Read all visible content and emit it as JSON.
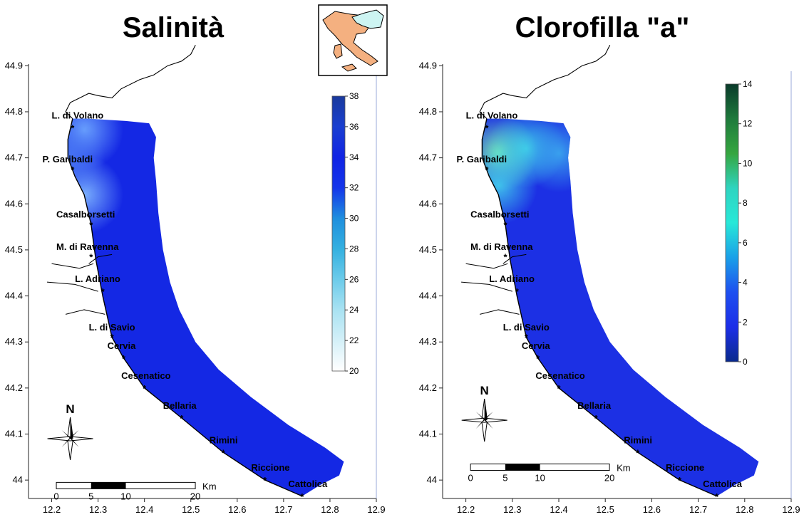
{
  "panels": [
    {
      "id": "salinity",
      "title": "Salinità",
      "colorbar": {
        "min": 20,
        "max": 38,
        "ticks": [
          20,
          22,
          24,
          26,
          28,
          30,
          32,
          34,
          36,
          38
        ],
        "colors": [
          "#ffffff",
          "#d4f0f8",
          "#a9e2f2",
          "#6ccbea",
          "#34b0e0",
          "#1f8fde",
          "#1435ea",
          "#1023e4",
          "#1a3fd0",
          "#1a3a9c"
        ]
      },
      "field": {
        "base_color": "#1428e4",
        "patches": [
          {
            "lon": 12.27,
            "lat": 44.76,
            "color": "#6fa8ff"
          },
          {
            "lon": 12.27,
            "lat": 44.62,
            "color": "#7fb6ff"
          },
          {
            "lon": 12.23,
            "lat": 44.7,
            "color": "#4a7af5"
          }
        ]
      },
      "has_inset": true,
      "north_arrow": {
        "lon": 12.24,
        "lat": 44.09,
        "label": "N"
      },
      "scalebar": {
        "label": "Km",
        "ticks": [
          "0",
          "5",
          "10",
          "20"
        ],
        "lon": 12.21,
        "lat": 43.995
      }
    },
    {
      "id": "chlorophyll",
      "title": "Clorofilla \"a\"",
      "colorbar": {
        "min": 0,
        "max": 14,
        "ticks": [
          0,
          2,
          4,
          6,
          8,
          10,
          12,
          14
        ],
        "colors": [
          "#0a2a8c",
          "#1c2ee8",
          "#1e4ff0",
          "#1aa0e8",
          "#28e8d8",
          "#2fd4c0",
          "#36a640",
          "#1e7a3c",
          "#0a3a2a"
        ]
      },
      "field": {
        "base_color": "#1c30e4",
        "patches": [
          {
            "lon": 12.27,
            "lat": 44.71,
            "color": "#7ef0b0"
          },
          {
            "lon": 12.33,
            "lat": 44.72,
            "color": "#40d8e8"
          },
          {
            "lon": 12.4,
            "lat": 44.71,
            "color": "#3aa4ee"
          },
          {
            "lon": 12.27,
            "lat": 44.64,
            "color": "#40c8ec"
          }
        ]
      },
      "has_inset": false,
      "north_arrow": {
        "lon": 12.24,
        "lat": 44.13,
        "label": "N"
      },
      "scalebar": {
        "label": "Km",
        "ticks": [
          "0",
          "5",
          "10",
          "20"
        ],
        "lon": 12.21,
        "lat": 44.035
      }
    }
  ],
  "axes": {
    "x_ticks": [
      "12.2",
      "12.3",
      "12.4",
      "12.5",
      "12.6",
      "12.7",
      "12.8",
      "12.9"
    ],
    "y_ticks": [
      "44",
      "44.1",
      "44.2",
      "44.3",
      "44.4",
      "44.5",
      "44.6",
      "44.7",
      "44.8",
      "44.9"
    ],
    "xlim": [
      12.15,
      12.9
    ],
    "ylim": [
      43.96,
      44.95
    ]
  },
  "places": [
    {
      "name": "L. di Volano",
      "lon": 12.245,
      "lat": 44.765,
      "label_lon": 12.2,
      "label_lat": 44.785
    },
    {
      "name": "P. Garibaldi",
      "lon": 12.245,
      "lat": 44.675,
      "label_lon": 12.18,
      "label_lat": 44.69
    },
    {
      "name": "Casalborsetti",
      "lon": 12.285,
      "lat": 44.555,
      "label_lon": 12.21,
      "label_lat": 44.57
    },
    {
      "name": "M. di Ravenna",
      "lon": 12.285,
      "lat": 44.485,
      "label_lon": 12.21,
      "label_lat": 44.5
    },
    {
      "name": "L. Adriano",
      "lon": 12.31,
      "lat": 44.41,
      "label_lon": 12.25,
      "label_lat": 44.43
    },
    {
      "name": "L. di Savio",
      "lon": 12.33,
      "lat": 44.31,
      "label_lon": 12.28,
      "label_lat": 44.325
    },
    {
      "name": "Cervia",
      "lon": 12.355,
      "lat": 44.265,
      "label_lon": 12.32,
      "label_lat": 44.285
    },
    {
      "name": "Cesenatico",
      "lon": 12.4,
      "lat": 44.2,
      "label_lon": 12.35,
      "label_lat": 44.22
    },
    {
      "name": "Bellaria",
      "lon": 12.48,
      "lat": 44.135,
      "label_lon": 12.44,
      "label_lat": 44.155
    },
    {
      "name": "Rimini",
      "lon": 12.57,
      "lat": 44.06,
      "label_lon": 12.54,
      "label_lat": 44.08
    },
    {
      "name": "Riccione",
      "lon": 12.66,
      "lat": 44.0,
      "label_lon": 12.63,
      "label_lat": 44.02
    },
    {
      "name": "Cattolica",
      "lon": 12.74,
      "lat": 43.965,
      "label_lon": 12.71,
      "label_lat": 43.985
    }
  ],
  "sea_polygon": [
    [
      12.245,
      44.785
    ],
    [
      12.28,
      44.785
    ],
    [
      12.36,
      44.78
    ],
    [
      12.41,
      44.775
    ],
    [
      12.425,
      44.745
    ],
    [
      12.42,
      44.7
    ],
    [
      12.425,
      44.65
    ],
    [
      12.43,
      44.58
    ],
    [
      12.44,
      44.5
    ],
    [
      12.455,
      44.43
    ],
    [
      12.475,
      44.37
    ],
    [
      12.51,
      44.3
    ],
    [
      12.56,
      44.24
    ],
    [
      12.63,
      44.18
    ],
    [
      12.71,
      44.12
    ],
    [
      12.79,
      44.07
    ],
    [
      12.83,
      44.04
    ],
    [
      12.82,
      44.01
    ],
    [
      12.78,
      43.99
    ],
    [
      12.74,
      43.965
    ],
    [
      12.66,
      44.0
    ],
    [
      12.57,
      44.06
    ],
    [
      12.48,
      44.135
    ],
    [
      12.4,
      44.2
    ],
    [
      12.355,
      44.265
    ],
    [
      12.33,
      44.31
    ],
    [
      12.31,
      44.4
    ],
    [
      12.295,
      44.48
    ],
    [
      12.285,
      44.555
    ],
    [
      12.27,
      44.62
    ],
    [
      12.25,
      44.66
    ],
    [
      12.235,
      44.7
    ],
    [
      12.235,
      44.74
    ]
  ],
  "coast_north": [
    [
      12.245,
      44.785
    ],
    [
      12.23,
      44.8
    ],
    [
      12.24,
      44.82
    ],
    [
      12.26,
      44.83
    ],
    [
      12.28,
      44.84
    ],
    [
      12.3,
      44.835
    ],
    [
      12.33,
      44.83
    ],
    [
      12.35,
      44.85
    ],
    [
      12.39,
      44.87
    ],
    [
      12.42,
      44.88
    ],
    [
      12.45,
      44.9
    ],
    [
      12.48,
      44.91
    ],
    [
      12.5,
      44.925
    ],
    [
      12.51,
      44.945
    ]
  ]
}
